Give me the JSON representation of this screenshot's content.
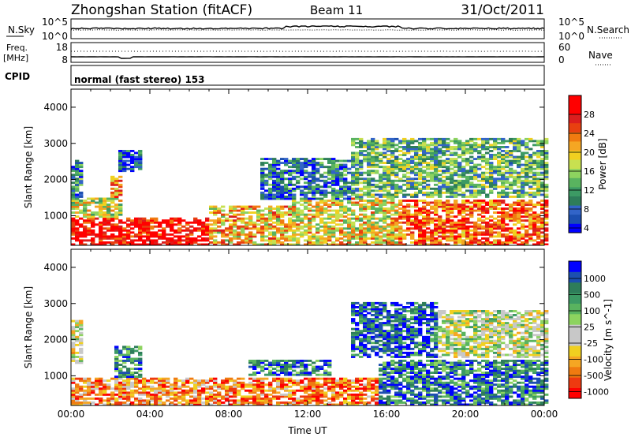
{
  "header": {
    "title": "Zhongshan Station (fitACF)",
    "beam": "Beam 11",
    "date": "31/Oct/2011"
  },
  "top_panel": {
    "left_label": "N.Sky",
    "right_label": "N.Search",
    "left_ticks": [
      "10^5",
      "10^0"
    ],
    "right_ticks": [
      "10^5",
      "10^0"
    ]
  },
  "freq_panel": {
    "left_label_1": "Freq.",
    "left_label_2": "[MHz]",
    "right_label": "Nave",
    "left_ticks": [
      "18",
      "8"
    ],
    "right_ticks": [
      "60",
      "0"
    ]
  },
  "cpid_panel": {
    "label": "CPID",
    "text": "normal (fast stereo) 153"
  },
  "chart_data": [
    {
      "type": "heatmap",
      "quantity": "Power",
      "ylabel": "Slant Range [km]",
      "ylim": [
        180,
        4500
      ],
      "y_ticks": [
        "1000",
        "2000",
        "3000",
        "4000"
      ],
      "colorbar": {
        "label": "Power [dB]",
        "ticks": [
          "28",
          "24",
          "20",
          "16",
          "12",
          "8",
          "4"
        ],
        "range": [
          0,
          30
        ],
        "colors": [
          "#0000ff",
          "#1c4fb0",
          "#3264c8",
          "#2e7d5a",
          "#3c9a64",
          "#59b35f",
          "#8dd35f",
          "#c8e050",
          "#f0d020",
          "#f5a623",
          "#f07b10",
          "#e84010",
          "#dc1e1e",
          "#ff0000",
          "#ff0000"
        ]
      },
      "echo_regions": [
        {
          "t0": 0.0,
          "t1": 6.9,
          "r0": 180,
          "r1": 900,
          "level": 0.9
        },
        {
          "t0": 0.0,
          "t1": 2.6,
          "r0": 900,
          "r1": 1500,
          "level": 0.5
        },
        {
          "t0": 0.0,
          "t1": 0.6,
          "r0": 1500,
          "r1": 2500,
          "level": 0.25
        },
        {
          "t0": 1.9,
          "t1": 2.6,
          "r0": 1400,
          "r1": 2100,
          "level": 0.7
        },
        {
          "t0": 2.2,
          "t1": 3.6,
          "r0": 2200,
          "r1": 2800,
          "level": 0.15
        },
        {
          "t0": 7.0,
          "t1": 11.0,
          "r0": 180,
          "r1": 1250,
          "level": 0.6
        },
        {
          "t0": 9.5,
          "t1": 14.0,
          "r0": 1400,
          "r1": 2600,
          "level": 0.2
        },
        {
          "t0": 11.0,
          "t1": 16.5,
          "r0": 180,
          "r1": 1500,
          "level": 0.55
        },
        {
          "t0": 14.0,
          "t1": 24.0,
          "r0": 1500,
          "r1": 3100,
          "level": 0.35
        },
        {
          "t0": 16.5,
          "t1": 24.0,
          "r0": 180,
          "r1": 1400,
          "level": 0.75
        }
      ]
    },
    {
      "type": "heatmap",
      "quantity": "Velocity",
      "ylabel": "Slant Range [km]",
      "xlabel": "Time UT",
      "ylim": [
        180,
        4500
      ],
      "y_ticks": [
        "1000",
        "2000",
        "3000",
        "4000"
      ],
      "x_ticks": [
        "00:00",
        "04:00",
        "08:00",
        "12:00",
        "16:00",
        "20:00",
        "00:00"
      ],
      "xlim": [
        0,
        24
      ],
      "colorbar": {
        "label": "Velocity [m s^-1]",
        "ticks": [
          "1000",
          "500",
          "100",
          "25",
          "-25",
          "-100",
          "-500",
          "-1000"
        ],
        "colors": [
          "#ff0000",
          "#ee3a10",
          "#f07b10",
          "#f5a623",
          "#f0d020",
          "#c8c8c8",
          "#c8c8c8",
          "#8dd35f",
          "#59b35f",
          "#3c9a64",
          "#2e7d5a",
          "#1c4fb0",
          "#0000ff"
        ]
      },
      "echo_regions": [
        {
          "t0": 0.0,
          "t1": 7.0,
          "r0": 180,
          "r1": 950,
          "level": 0.25
        },
        {
          "t0": 0.0,
          "t1": 0.6,
          "r0": 1200,
          "r1": 2500,
          "level": 0.45
        },
        {
          "t0": 2.0,
          "t1": 3.5,
          "r0": 180,
          "r1": 1800,
          "level": 0.75
        },
        {
          "t0": 7.0,
          "t1": 15.5,
          "r0": 180,
          "r1": 950,
          "level": 0.2
        },
        {
          "t0": 9.0,
          "t1": 13.0,
          "r0": 1000,
          "r1": 1400,
          "level": 0.8
        },
        {
          "t0": 14.0,
          "t1": 18.5,
          "r0": 1500,
          "r1": 3000,
          "level": 0.85
        },
        {
          "t0": 18.5,
          "t1": 24.0,
          "r0": 1500,
          "r1": 2800,
          "level": 0.5
        },
        {
          "t0": 15.5,
          "t1": 24.0,
          "r0": 180,
          "r1": 1400,
          "level": 0.8
        },
        {
          "t0": 18.5,
          "t1": 21.0,
          "r0": 300,
          "r1": 900,
          "level": 0.95
        }
      ]
    }
  ]
}
